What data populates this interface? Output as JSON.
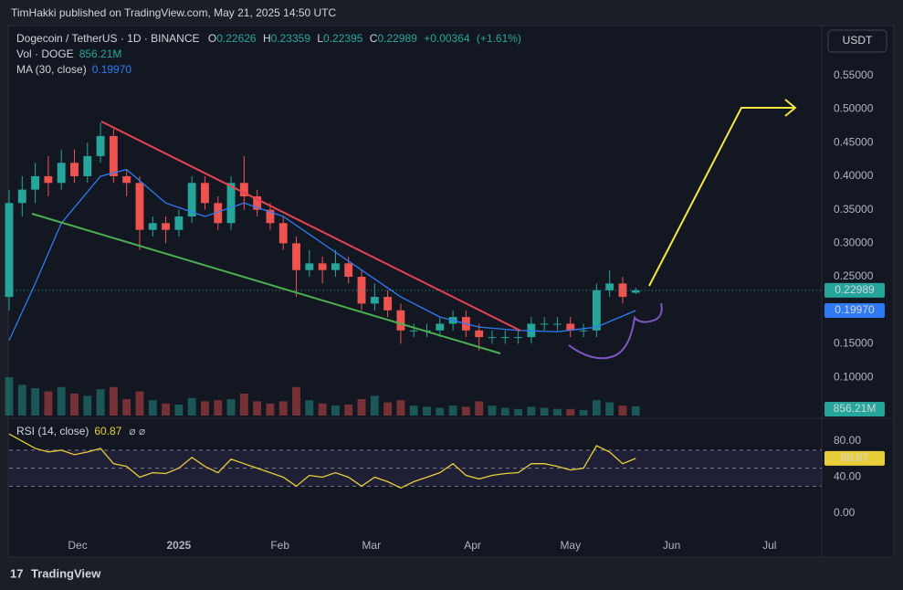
{
  "chart_data": {
    "type": "candlestick",
    "published": "TimHakki published on TradingView.com, May 21, 2025 14:50 UTC",
    "title": "Dogecoin / TetherUS · 1D · BINANCE",
    "currency": "USDT",
    "brand": "TradingView",
    "ohlc_labels": [
      "O",
      "H",
      "L",
      "C"
    ],
    "change": {
      "value": 0.00364,
      "label": "+0.00364"
    },
    "change_pct": {
      "value": 1.61,
      "label": "(+1.61%)"
    },
    "up_color": "#26a69a",
    "down_color": "#ef5350",
    "x": [
      0,
      4,
      8,
      12,
      16,
      20,
      24,
      28,
      32,
      36,
      40,
      44,
      48,
      52,
      56,
      60,
      64,
      68,
      72,
      76,
      80,
      84,
      88,
      92,
      96,
      100,
      104,
      108,
      112,
      116,
      120,
      124,
      128,
      132,
      136,
      140,
      144,
      148,
      152,
      156,
      160,
      164,
      168,
      172,
      176,
      180,
      184,
      188,
      192
    ],
    "xlim": [
      0,
      249
    ],
    "xticks": [
      {
        "value": 21,
        "label": "Dec"
      },
      {
        "value": 52,
        "label": "2025"
      },
      {
        "value": 83,
        "label": "Feb"
      },
      {
        "value": 111,
        "label": "Mar"
      },
      {
        "value": 142,
        "label": "Apr"
      },
      {
        "value": 172,
        "label": "May"
      },
      {
        "value": 203,
        "label": "Jun"
      },
      {
        "value": 233,
        "label": "Jul"
      }
    ],
    "open": [
      0.22,
      0.36,
      0.38,
      0.4,
      0.39,
      0.42,
      0.4,
      0.43,
      0.46,
      0.4,
      0.39,
      0.32,
      0.33,
      0.32,
      0.34,
      0.39,
      0.36,
      0.33,
      0.39,
      0.37,
      0.35,
      0.33,
      0.3,
      0.26,
      0.27,
      0.26,
      0.27,
      0.25,
      0.21,
      0.22,
      0.2,
      0.17,
      0.17,
      0.17,
      0.18,
      0.19,
      0.17,
      0.16,
      0.16,
      0.16,
      0.16,
      0.18,
      0.18,
      0.18,
      0.17,
      0.17,
      0.23,
      0.24,
      0.22626
    ],
    "high": [
      0.38,
      0.4,
      0.42,
      0.43,
      0.44,
      0.44,
      0.45,
      0.48,
      0.47,
      0.41,
      0.4,
      0.34,
      0.34,
      0.35,
      0.4,
      0.4,
      0.37,
      0.4,
      0.43,
      0.38,
      0.36,
      0.34,
      0.31,
      0.29,
      0.28,
      0.29,
      0.28,
      0.26,
      0.24,
      0.23,
      0.21,
      0.18,
      0.18,
      0.19,
      0.2,
      0.2,
      0.18,
      0.17,
      0.17,
      0.17,
      0.19,
      0.19,
      0.19,
      0.19,
      0.18,
      0.24,
      0.26,
      0.25,
      0.23359
    ],
    "low": [
      0.2,
      0.34,
      0.36,
      0.37,
      0.38,
      0.39,
      0.39,
      0.42,
      0.39,
      0.37,
      0.29,
      0.31,
      0.3,
      0.31,
      0.33,
      0.35,
      0.32,
      0.32,
      0.35,
      0.34,
      0.32,
      0.29,
      0.22,
      0.25,
      0.24,
      0.25,
      0.24,
      0.2,
      0.2,
      0.19,
      0.15,
      0.16,
      0.16,
      0.16,
      0.17,
      0.16,
      0.14,
      0.15,
      0.15,
      0.15,
      0.15,
      0.17,
      0.17,
      0.16,
      0.16,
      0.16,
      0.22,
      0.21,
      0.22395
    ],
    "close": [
      0.36,
      0.38,
      0.4,
      0.39,
      0.42,
      0.4,
      0.43,
      0.46,
      0.4,
      0.39,
      0.32,
      0.33,
      0.32,
      0.34,
      0.39,
      0.36,
      0.33,
      0.39,
      0.37,
      0.35,
      0.33,
      0.3,
      0.26,
      0.27,
      0.26,
      0.27,
      0.25,
      0.21,
      0.22,
      0.2,
      0.17,
      0.17,
      0.17,
      0.18,
      0.19,
      0.17,
      0.16,
      0.16,
      0.16,
      0.16,
      0.18,
      0.18,
      0.18,
      0.17,
      0.17,
      0.23,
      0.24,
      0.22,
      0.22989
    ],
    "ylim": [
      0.043,
      0.622
    ],
    "yticks": [
      {
        "value": 0.1,
        "label": "0.10000"
      },
      {
        "value": 0.15,
        "label": "0.15000"
      },
      {
        "value": 0.25,
        "label": "0.25000"
      },
      {
        "value": 0.3,
        "label": "0.30000"
      },
      {
        "value": 0.35,
        "label": "0.35000"
      },
      {
        "value": 0.4,
        "label": "0.40000"
      },
      {
        "value": 0.45,
        "label": "0.45000"
      },
      {
        "value": 0.5,
        "label": "0.50000"
      },
      {
        "value": 0.55,
        "label": "0.55000"
      }
    ],
    "volume": {
      "name": "Vol · DOGE",
      "value_label": "856.21M",
      "ylim": [
        0,
        5000
      ],
      "values": [
        3500,
        2800,
        2500,
        2200,
        2600,
        2000,
        1800,
        2400,
        2600,
        1500,
        2200,
        1400,
        1100,
        1000,
        1600,
        1300,
        1400,
        1500,
        2000,
        1300,
        1100,
        1300,
        2600,
        1400,
        1100,
        900,
        1000,
        1500,
        1800,
        1200,
        1400,
        900,
        800,
        700,
        900,
        800,
        1300,
        900,
        700,
        600,
        800,
        700,
        600,
        600,
        500,
        1400,
        1200,
        900,
        856.21
      ]
    },
    "ma": {
      "name": "MA (30, close)",
      "color": "#2f7bf5",
      "value_label": "0.19970",
      "x": [
        0,
        8,
        16,
        28,
        36,
        48,
        60,
        72,
        84,
        96,
        108,
        120,
        132,
        144,
        156,
        168,
        180,
        192
      ],
      "values": [
        0.155,
        0.24,
        0.33,
        0.4,
        0.41,
        0.36,
        0.34,
        0.36,
        0.34,
        0.3,
        0.26,
        0.22,
        0.19,
        0.175,
        0.17,
        0.168,
        0.175,
        0.1997
      ]
    },
    "rsi": {
      "name": "RSI (14, close)",
      "color": "#e8cf3a",
      "ylim": [
        -23.5,
        101.4
      ],
      "bands": [
        30,
        50,
        70
      ],
      "yticks": [
        {
          "value": 80,
          "label": "80.00"
        },
        {
          "value": 40,
          "label": "40.00"
        },
        {
          "value": 0,
          "label": "0.00"
        }
      ],
      "values": [
        88,
        80,
        72,
        68,
        70,
        65,
        68,
        72,
        55,
        52,
        40,
        45,
        44,
        50,
        62,
        52,
        45,
        60,
        55,
        50,
        45,
        40,
        30,
        42,
        40,
        45,
        40,
        30,
        40,
        35,
        28,
        35,
        40,
        45,
        55,
        42,
        38,
        42,
        44,
        45,
        55,
        55,
        52,
        48,
        50,
        75,
        68,
        55,
        60.87
      ]
    }
  }
}
